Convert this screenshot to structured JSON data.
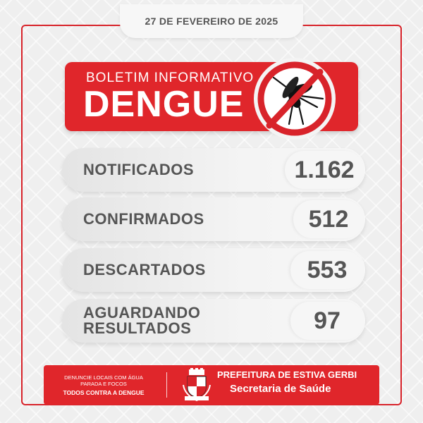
{
  "date": "27 DE FEVEREIRO DE 2025",
  "banner": {
    "subtitle": "BOLETIM INFORMATIVO",
    "title": "DENGUE"
  },
  "stats": [
    {
      "label": "NOTIFICADOS",
      "value": "1.162"
    },
    {
      "label": "CONFIRMADOS",
      "value": "512"
    },
    {
      "label": "DESCARTADOS",
      "value": "553"
    },
    {
      "label_line1": "AGUARDANDO",
      "label_line2": "RESULTADOS",
      "value": "97"
    }
  ],
  "footer": {
    "campaign_line1": "DENUNCIE LOCAIS COM ÁGUA",
    "campaign_line2": "PARADA E FOCOS",
    "slogan": "TODOS CONTRA A DENGUE",
    "org": "PREFEITURA DE ESTIVA GERBI",
    "dept": "Secretaria de Saúde"
  },
  "colors": {
    "brand_red": "#e0262b",
    "text_gray": "#555555"
  },
  "icons": [
    "no-mosquito-icon",
    "city-crest-icon"
  ]
}
